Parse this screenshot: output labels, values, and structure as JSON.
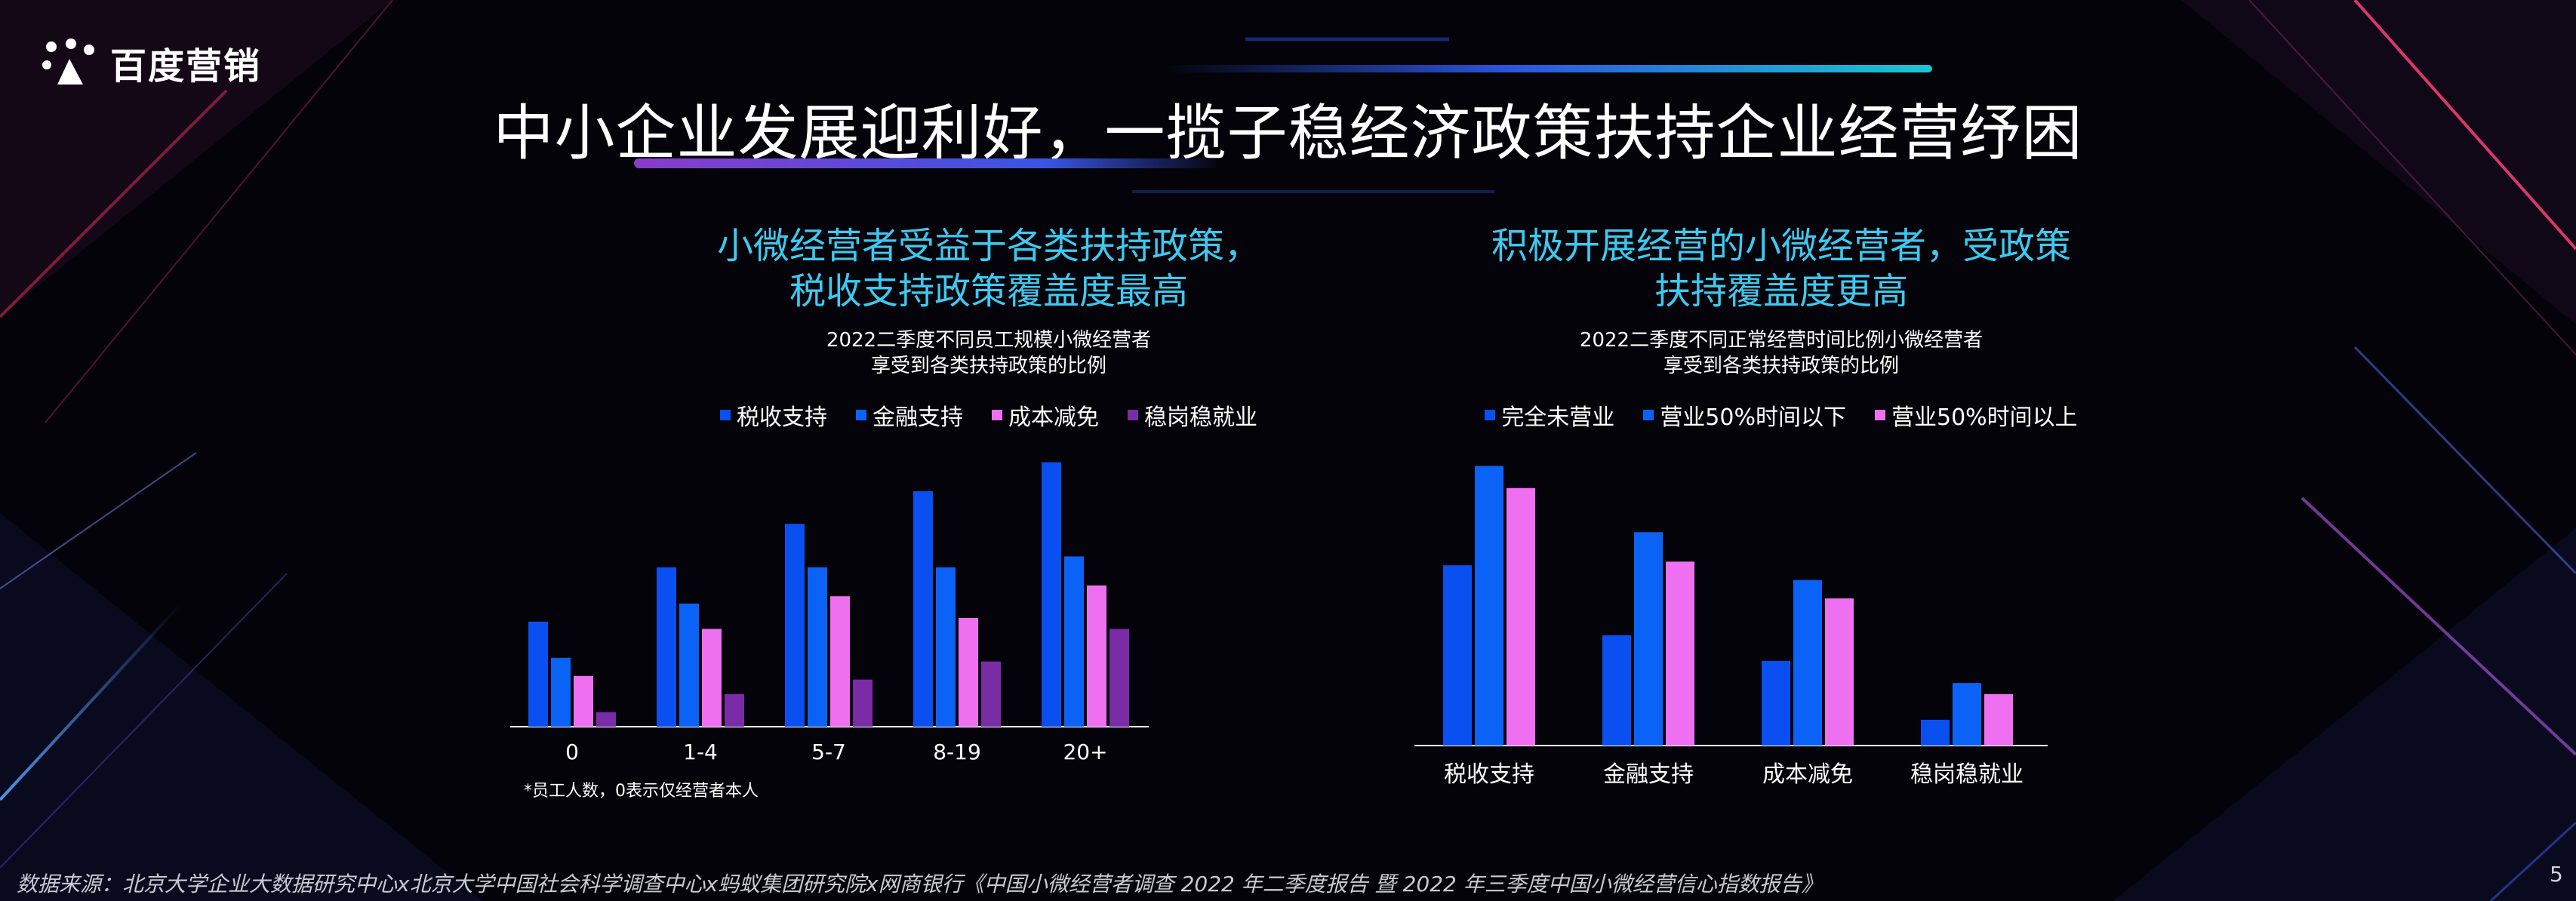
{
  "brand": {
    "name": "百度营销"
  },
  "title": "中小企业发展迎利好，一揽子稳经济政策扶持企业经营纾困",
  "left_panel": {
    "headline": [
      "小微经营者受益于各类扶持政策，",
      "税收支持政策覆盖度最高"
    ],
    "subtitle": [
      "2022二季度不同员工规模小微经营者",
      "享受到各类扶持政策的比例"
    ],
    "note": "*员工人数，0表示仅经营者本人"
  },
  "right_panel": {
    "headline": [
      "积极开展经营的小微经营者，受政策",
      "扶持覆盖度更高"
    ],
    "subtitle": [
      "2022二季度不同正常经营时间比例小微经营者",
      "享受到各类扶持政策的比例"
    ]
  },
  "colors": {
    "accent_blue": "#3dc9f0",
    "series_blue": "#0a4ff0",
    "series_blue2": "#0a63f6",
    "series_pink": "#ee6ff0",
    "series_purple": "#7a2ba6"
  },
  "chart_data": [
    {
      "type": "bar",
      "categories": [
        "0",
        "1-4",
        "5-7",
        "8-19",
        "20+"
      ],
      "series": [
        {
          "name": "税收支持",
          "values": [
            29,
            44,
            56,
            65,
            73
          ],
          "color": "#0a4ff0"
        },
        {
          "name": "金融支持",
          "values": [
            19,
            34,
            44,
            44,
            47
          ],
          "color": "#0a63f6"
        },
        {
          "name": "成本减免",
          "values": [
            14,
            27,
            36,
            30,
            39
          ],
          "color": "#ee6ff0"
        },
        {
          "name": "稳岗稳就业",
          "values": [
            4,
            9,
            13,
            18,
            27
          ],
          "color": "#7a2ba6"
        }
      ],
      "ylim": [
        0,
        75
      ],
      "legend": "top",
      "grid": false
    },
    {
      "type": "bar",
      "categories": [
        "税收支持",
        "金融支持",
        "成本减免",
        "稳岗稳就业"
      ],
      "series": [
        {
          "name": "完全未营业",
          "values": [
            49,
            30,
            23,
            7
          ],
          "color": "#0a4ff0"
        },
        {
          "name": "营业50%时间以下",
          "values": [
            76,
            58,
            45,
            17
          ],
          "color": "#0a63f6"
        },
        {
          "name": "营业50%时间以上",
          "values": [
            70,
            50,
            40,
            14
          ],
          "color": "#ee6ff0"
        }
      ],
      "ylim": [
        0,
        80
      ],
      "legend": "top",
      "grid": false
    }
  ],
  "footer": {
    "source": "数据来源：北京大学企业大数据研究中心x北京大学中国社会科学调查中心x蚂蚁集团研究院x网商银行《中国小微经营者调查 2022 年二季度报告 暨 2022 年三季度中国小微经营信心指数报告》",
    "page": "5"
  }
}
